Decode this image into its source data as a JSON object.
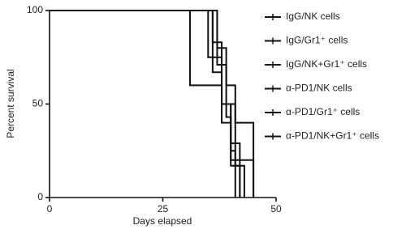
{
  "chart_data": {
    "type": "step",
    "x_label": "Days elapsed",
    "y_label": "Percent survival",
    "xlim": [
      0,
      50
    ],
    "xticks": [
      0,
      25,
      50
    ],
    "ylim": [
      0,
      100
    ],
    "yticks": [
      0,
      50,
      100
    ],
    "series": [
      {
        "name": "IgG/NK cells",
        "color": "#111111",
        "x": [
          0,
          36,
          38,
          41,
          43
        ],
        "values": [
          100,
          67,
          50,
          17,
          0
        ]
      },
      {
        "name": "IgG/Gr1⁺ cells",
        "color": "#111111",
        "x": [
          0,
          37,
          39,
          40,
          42
        ],
        "values": [
          100,
          71,
          43,
          29,
          0
        ]
      },
      {
        "name": "IgG/NK+Gr1⁺ cells",
        "color": "#111111",
        "x": [
          0,
          35,
          38,
          40,
          41
        ],
        "values": [
          100,
          75,
          50,
          25,
          0
        ]
      },
      {
        "name": "α-PD1/NK cells",
        "color": "#111111",
        "x": [
          0,
          31,
          38,
          40,
          45
        ],
        "values": [
          100,
          60,
          40,
          20,
          0
        ]
      },
      {
        "name": "α-PD1/Gr1⁺ cells",
        "color": "#111111",
        "x": [
          0,
          37,
          39,
          41,
          45
        ],
        "values": [
          100,
          80,
          60,
          40,
          0
        ]
      },
      {
        "name": "α-PD1/NK+Gr1⁺ cells",
        "color": "#111111",
        "x": [
          0,
          36,
          38,
          40,
          42
        ],
        "values": [
          100,
          83,
          50,
          17,
          0
        ]
      }
    ]
  }
}
